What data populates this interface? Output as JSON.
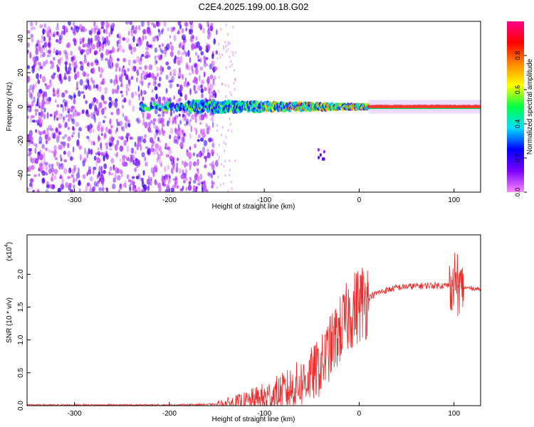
{
  "title": "C2E4.2025.199.00.18.G02",
  "colors": {
    "snr_line": "#ee2a2a",
    "axis": "#000000",
    "background": "#ffffff",
    "colorbar_stops": [
      "#ff88ff",
      "#7b00ff",
      "#0000ff",
      "#00ddff",
      "#00ff44",
      "#ffff00",
      "#ff8800",
      "#ff0000",
      "#ff0088"
    ]
  },
  "chart_data": [
    {
      "type": "heatmap",
      "title": "C2E4.2025.199.00.18.G02",
      "xlabel": "Height of straight line (km)",
      "ylabel": "Frequency (Hz)",
      "xlim": [
        -350,
        128
      ],
      "ylim": [
        -50,
        50
      ],
      "xticks": [
        -300,
        -200,
        -100,
        0,
        100
      ],
      "yticks": [
        -40,
        -20,
        0,
        20,
        40
      ],
      "colorbar": {
        "label": "Normalized spectral amplitude",
        "range": [
          0,
          1
        ],
        "ticks": [
          "0.0",
          "0.2",
          "0.4",
          "0.6",
          "0.8"
        ]
      },
      "features": {
        "noise_region_x": [
          -350,
          -150
        ],
        "signal_line_freq": 0,
        "signal_start_x": -230,
        "strong_signal_start_x": 10,
        "scatter_streak": {
          "x": [
            -45,
            -30
          ],
          "freq": [
            -25,
            -32
          ]
        }
      }
    },
    {
      "type": "line",
      "xlabel": "Height of straight line (km)",
      "ylabel": "SNR (10 * v/v)",
      "y_multiplier": "(x10",
      "y_multiplier_exp": "4",
      "xlim": [
        -350,
        128
      ],
      "ylim": [
        0,
        2.6
      ],
      "xticks": [
        -300,
        -200,
        -100,
        0,
        100
      ],
      "yticks": [
        "0.0",
        "0.5",
        "1.0",
        "1.5",
        "2.0"
      ],
      "series": [
        {
          "x": [
            -350,
            -300,
            -200,
            -150,
            -120,
            -100,
            -80,
            -60,
            -40,
            -30,
            -20,
            -10,
            0,
            10,
            20,
            30,
            40,
            60,
            80,
            95,
            100,
            103,
            110,
            128
          ],
          "y": [
            0.01,
            0.01,
            0.01,
            0.02,
            0.05,
            0.12,
            0.2,
            0.35,
            0.6,
            0.9,
            1.15,
            1.4,
            1.55,
            1.65,
            1.72,
            1.76,
            1.8,
            1.82,
            1.83,
            1.83,
            1.84,
            1.8,
            1.8,
            1.77
          ]
        }
      ]
    }
  ]
}
